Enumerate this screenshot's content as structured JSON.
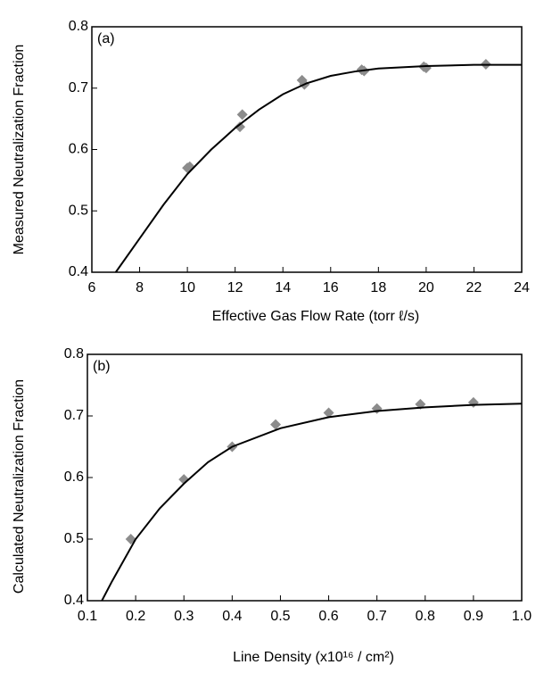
{
  "chart_data": [
    {
      "type": "scatter",
      "panel_label": "(a)",
      "x_label": "Effective Gas Flow Rate (torr ℓ/s)",
      "y_label": "Measured Neutralization Fraction",
      "xlim": [
        6,
        24
      ],
      "xticks": [
        6,
        8,
        10,
        12,
        14,
        16,
        18,
        20,
        22,
        24
      ],
      "ylim": [
        0.4,
        0.8
      ],
      "yticks": [
        0.4,
        0.5,
        0.6,
        0.7,
        0.8
      ],
      "series": [
        {
          "marker": "diamond",
          "color": "#8c8c8c",
          "x": [
            10,
            10.1,
            12.2,
            12.3,
            14.8,
            14.9,
            17.3,
            17.4,
            19.9,
            20,
            22.5
          ],
          "y": [
            0.57,
            0.572,
            0.637,
            0.657,
            0.713,
            0.706,
            0.73,
            0.728,
            0.735,
            0.733,
            0.739
          ]
        },
        {
          "marker": "line",
          "color": "#000000",
          "x": [
            7,
            8,
            9,
            10,
            11,
            12,
            13,
            14,
            15,
            16,
            17,
            18,
            20,
            22,
            24
          ],
          "y": [
            0.4,
            0.455,
            0.51,
            0.56,
            0.6,
            0.635,
            0.665,
            0.69,
            0.708,
            0.72,
            0.727,
            0.732,
            0.736,
            0.738,
            0.738
          ]
        }
      ]
    },
    {
      "type": "scatter",
      "panel_label": "(b)",
      "x_label": "Line Density (x10¹⁶ / cm²)",
      "y_label": "Calculated Neutralization Fraction",
      "xlim": [
        0.1,
        1
      ],
      "xticks": [
        0.1,
        0.2,
        0.3,
        0.4,
        0.5,
        0.6,
        0.7,
        0.8,
        0.9,
        {
          "value": 1,
          "label": "1.0"
        }
      ],
      "ylim": [
        0.4,
        0.8
      ],
      "yticks": [
        0.4,
        0.5,
        0.6,
        0.7,
        0.8
      ],
      "series": [
        {
          "marker": "diamond",
          "color": "#8c8c8c",
          "x": [
            0.19,
            0.3,
            0.4,
            0.49,
            0.6,
            0.7,
            0.79,
            0.9
          ],
          "y": [
            0.5,
            0.597,
            0.65,
            0.686,
            0.705,
            0.712,
            0.719,
            0.722
          ]
        },
        {
          "marker": "line",
          "color": "#000000",
          "x": [
            0.13,
            0.15,
            0.2,
            0.25,
            0.3,
            0.35,
            0.4,
            0.5,
            0.6,
            0.7,
            0.8,
            0.9,
            1
          ],
          "y": [
            0.4,
            0.43,
            0.5,
            0.55,
            0.59,
            0.625,
            0.65,
            0.68,
            0.698,
            0.708,
            0.714,
            0.718,
            0.72
          ]
        }
      ]
    }
  ]
}
